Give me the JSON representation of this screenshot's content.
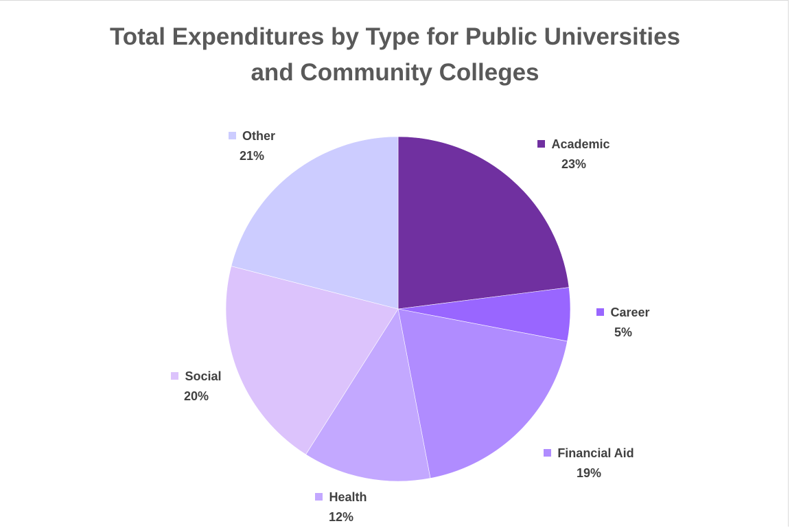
{
  "chart_data": {
    "type": "pie",
    "title": [
      "Total Expenditures by Type for Public Universities",
      "and Community Colleges"
    ],
    "slices": [
      {
        "name": "Academic",
        "value": 23,
        "label": "23%",
        "color": "#7030a0"
      },
      {
        "name": "Career",
        "value": 5,
        "label": "5%",
        "color": "#9966ff"
      },
      {
        "name": "Financial Aid",
        "value": 19,
        "label": "19%",
        "color": "#b08cff"
      },
      {
        "name": "Health",
        "value": 12,
        "label": "12%",
        "color": "#c3a8ff"
      },
      {
        "name": "Social",
        "value": 20,
        "label": "20%",
        "color": "#dcc3fc"
      },
      {
        "name": "Other",
        "value": 21,
        "label": "21%",
        "color": "#ccccff"
      }
    ],
    "start_angle": "12 o'clock",
    "direction": "clockwise",
    "legend": "none",
    "data_labels": "category name and percentage outside slices"
  }
}
